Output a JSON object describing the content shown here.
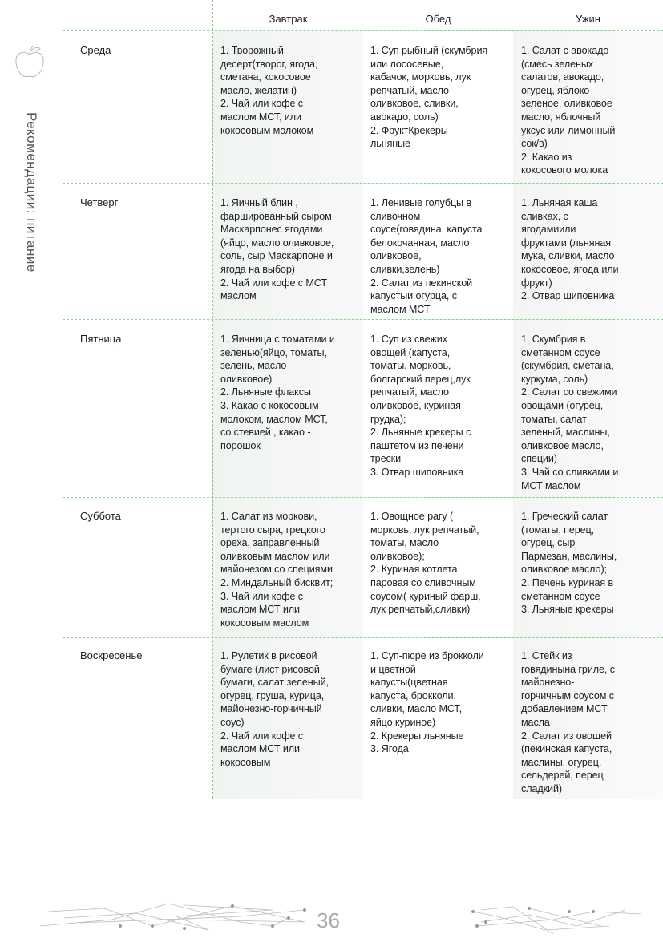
{
  "sidebar_title": "Рекомендации: питание",
  "page_number": "36",
  "icon": "apple-icon",
  "colors": {
    "divider": "#7fc57f",
    "column_shade": "#f3f6f4"
  },
  "headers": [
    "Завтрак",
    "Обед",
    "Ужин"
  ],
  "rows": [
    {
      "day": "Среда",
      "breakfast": "1. Творожный\nдесерт(творог, ягода,\nсметана, кокосовое\nмасло, желатин)\n2. Чай или кофе с\nмаслом МСТ, или\nкокосовым молоком",
      "lunch": "1. Суп рыбный (скумбрия\nили лососевые,\nкабачок, морковь, лук\nрепчатый, масло\nоливковое, сливки,\nавокадо, соль)\n2. ФруктКрекеры\nльняные",
      "dinner": "1. Салат с авокадо\n(смесь зеленых\nсалатов, авокадо,\nогурец, яблоко\nзеленое, оливковое\nмасло, яблочный\nуксус или лимонный\nсок/в)\n2. Какао из\nкокосового молока"
    },
    {
      "day": "Четверг",
      "breakfast": "1. Яичный блин ,\nфаршированный сыром\nМаскарпонес ягодами\n(яйцо, масло оливковое,\nсоль, сыр Маскарпоне и\nягода на выбор)\n2. Чай или кофе с МСТ\nмаслом",
      "lunch": "1. Ленивые голубцы в\nсливочном\nсоусе(говядина, капуста\nбелокочанная, масло\nоливковое,\nсливки,зелень)\n2. Салат из пекинской\nкапустыи огурца, с\nмаслом МСТ",
      "dinner": "1. Льняная каша\nсливках, с\nягодамиили\nфруктами (льняная\nмука, сливки, масло\nкокосовое, ягода или\nфрукт)\n2. Отвар шиповника"
    },
    {
      "day": "Пятница",
      "breakfast": "1. Яичница с томатами и\nзеленью(яйцо, томаты,\nзелень, масло\nоливковое)\n2. Льняные флаксы\n3. Какао с кокосовым\nмолоком, маслом МСТ,\nсо стевией , какао -\nпорошок",
      "lunch": "1. Суп из свежих\nовощей (капуста,\nтоматы, морковь,\nболгарский перец,лук\nрепчатый, масло\nоливковое, куриная\nгрудка);\n2. Льняные крекеры с\nпаштетом из печени\nтрески\n3. Отвар шиповника",
      "dinner": "1. Скумбрия в\nсметанном соусе\n(скумбрия, сметана,\nкуркума, соль)\n2. Салат со свежими\nовощами (огурец,\nтоматы, салат\nзеленый, маслины,\nоливковое масло,\nспеции)\n3. Чай со сливками и\nМСТ маслом"
    },
    {
      "day": "Суббота",
      "breakfast": "1. Салат из моркови,\nтертого сыра, грецкого\nореха, заправленный\nоливковым маслом или\nмайонезом со специями\n2. Миндальный бисквит;\n3. Чай или кофе с\nмаслом МСТ или\nкокосовым маслом",
      "lunch": "1. Овощное рагу (\nморковь, лук репчатый,\nтоматы, масло\nоливковое);\n2. Куриная котлета\nпаровая со сливочным\nсоусом( куриный фарш,\nлук репчатый,сливки)",
      "dinner": "1. Греческий салат\n(томаты, перец,\nогурец, сыр\nПармезан, маслины,\nоливковое масло);\n2. Печень куриная в\nсметанном соусе\n3. Льняные крекеры"
    },
    {
      "day": "Воскресенье",
      "breakfast": "1. Рулетик в рисовой\nбумаге (лист рисовой\nбумаги, салат зеленый,\nогурец, груша, курица,\nмайонезно-горчичный\nсоус)\n2. Чай или кофе с\nмаслом МСТ или\nкокосовым",
      "lunch": "1. Суп-пюре из брокколи\nи цветной\nкапусты(цветная\nкапуста, брокколи,\nсливки, масло МСТ,\nяйцо куриное)\n2. Крекеры льняные\n3. Ягода",
      "dinner": "1. Стейк из\nговядинына гриле, с\nмайонезно-\nгорчичным соусом с\nдобавлением МСТ\nмасла\n2. Салат из овощей\n(пекинская капуста,\nмаслины, огурец,\nсельдерей, перец\nсладкий)"
    }
  ]
}
